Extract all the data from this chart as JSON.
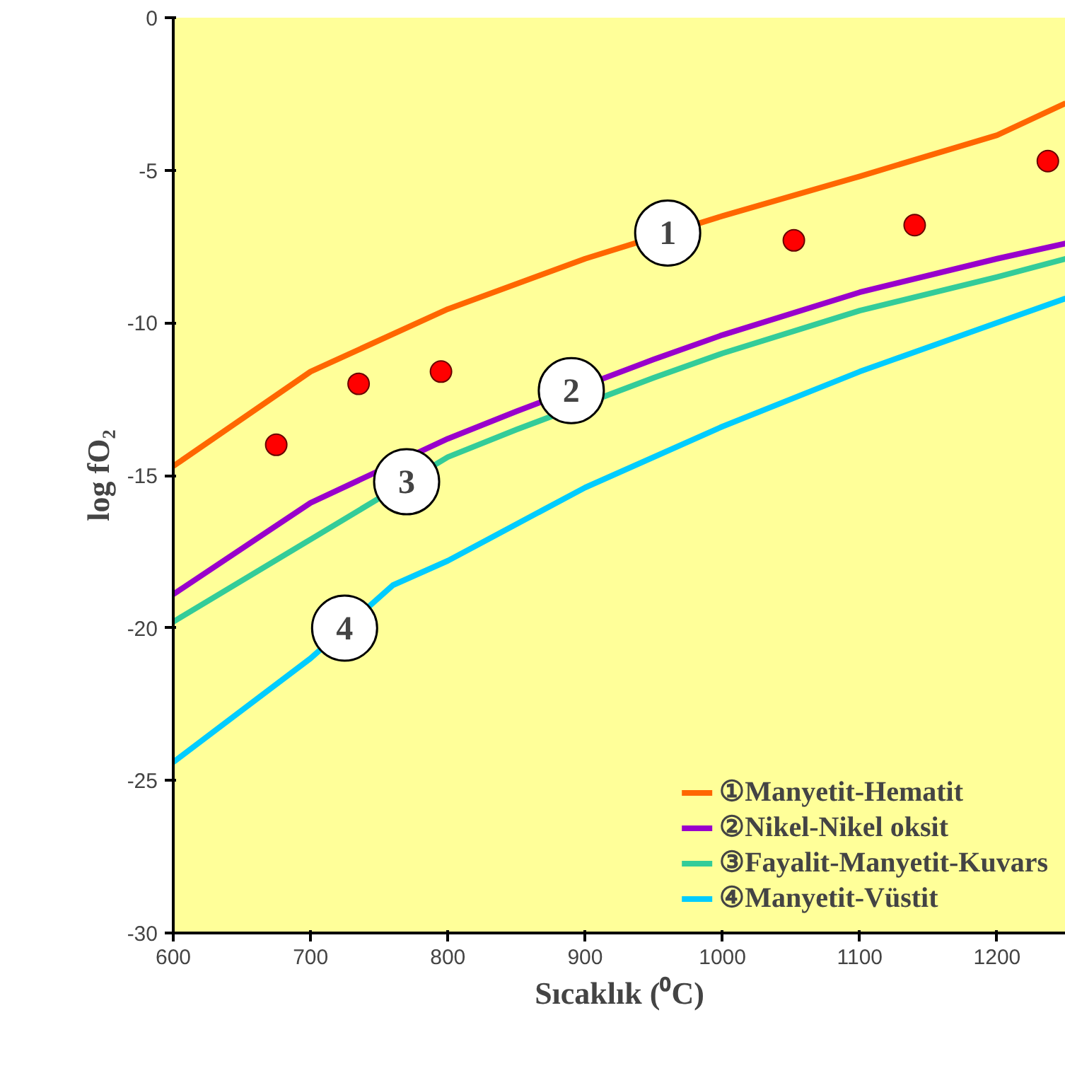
{
  "chart_data": {
    "type": "line",
    "xlabel": "Sıcaklık (⁰C)",
    "ylabel": "log fO₂",
    "x": [
      600,
      700,
      800,
      900,
      1000,
      1100,
      1200,
      1250
    ],
    "series": [
      {
        "name": "①Manyetit-Hematit",
        "color": "#ff6600",
        "values": [
          -14.7,
          -11.6,
          -9.55,
          -7.9,
          -6.5,
          -5.2,
          -3.85,
          -2.8
        ]
      },
      {
        "name": "②Nikel-Nikel oksit",
        "color": "#9900cc",
        "x": [
          600,
          700,
          800,
          850,
          950,
          1000,
          1100,
          1200,
          1250
        ],
        "values": [
          -18.9,
          -15.9,
          -13.8,
          -12.9,
          -11.2,
          -10.4,
          -9.0,
          -7.9,
          -7.4
        ]
      },
      {
        "name": "③Fayalit-Manyetit-Kuvars",
        "color": "#33cc99",
        "x": [
          600,
          700,
          800,
          850,
          950,
          1000,
          1100,
          1200,
          1250
        ],
        "values": [
          -19.8,
          -17.1,
          -14.4,
          -13.5,
          -11.8,
          -11.0,
          -9.6,
          -8.5,
          -7.9
        ]
      },
      {
        "name": "④Manyetit-Vüstit",
        "color": "#00ccff",
        "x": [
          600,
          700,
          760,
          800,
          900,
          1000,
          1100,
          1200,
          1250
        ],
        "values": [
          -24.4,
          -21.0,
          -18.6,
          -17.8,
          -15.4,
          -13.4,
          -11.6,
          -10.0,
          -9.2
        ]
      },
      {
        "type": "scatter",
        "color": "#ff0000",
        "x": [
          675,
          735,
          795,
          1052,
          1140,
          1237
        ],
        "values": [
          -14.0,
          -12.0,
          -11.6,
          -7.3,
          -6.8,
          -4.7
        ]
      }
    ],
    "annotations": [
      "1",
      "2",
      "3",
      "4"
    ],
    "xlim": [
      600,
      1250
    ],
    "ylim": [
      -30,
      0
    ],
    "xticks": [
      600,
      700,
      800,
      900,
      1000,
      1100,
      1200
    ],
    "yticks": [
      -30,
      -25,
      -20,
      -15,
      -10,
      -5,
      0
    ],
    "grid": false,
    "legend": "bottom right",
    "line_style": "solid"
  }
}
